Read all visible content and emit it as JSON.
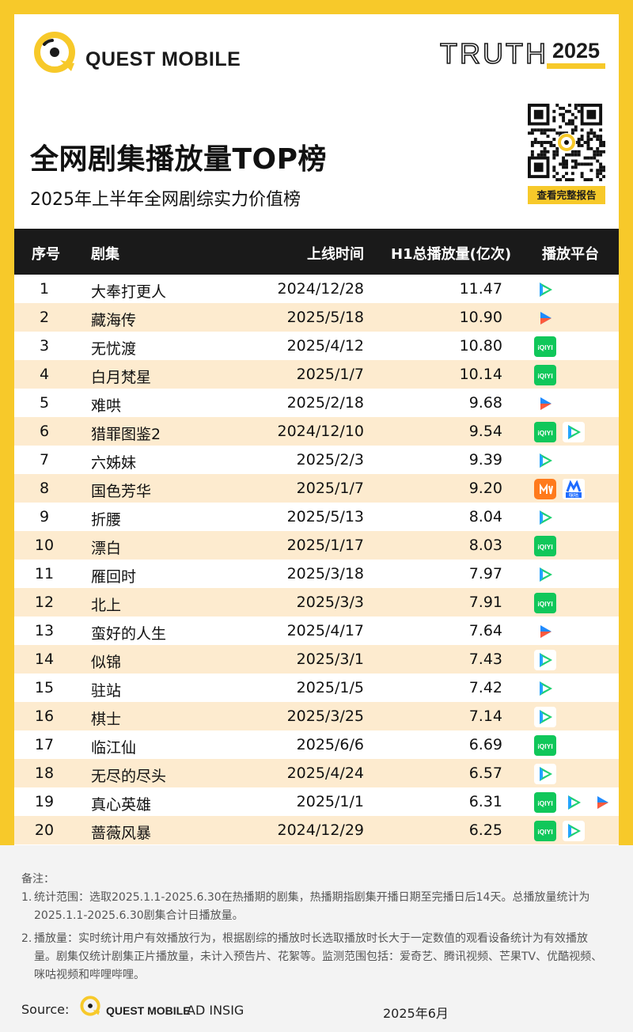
{
  "header": {
    "brand": "QUEST MOBILE",
    "truth_word": "TRUTH",
    "truth_year": "2025",
    "title": "全网剧集播放量TOP榜",
    "subtitle": "2025年上半年全网剧综实力价值榜",
    "report_button": "查看完整报告"
  },
  "table": {
    "columns": {
      "rank": "序号",
      "name": "剧集",
      "date": "上线时间",
      "plays": "H1总播放量(亿次)",
      "platform": "播放平台"
    },
    "rows": [
      {
        "rank": "1",
        "name": "大奉打更人",
        "date": "2024/12/28",
        "plays": "11.47",
        "platforms": [
          "tencent"
        ]
      },
      {
        "rank": "2",
        "name": "藏海传",
        "date": "2025/5/18",
        "plays": "10.90",
        "platforms": [
          "youku"
        ]
      },
      {
        "rank": "3",
        "name": "无忧渡",
        "date": "2025/4/12",
        "plays": "10.80",
        "platforms": [
          "iqiyi"
        ]
      },
      {
        "rank": "4",
        "name": "白月梵星",
        "date": "2025/1/7",
        "plays": "10.14",
        "platforms": [
          "iqiyi"
        ]
      },
      {
        "rank": "5",
        "name": "难哄",
        "date": "2025/2/18",
        "plays": "9.68",
        "platforms": [
          "youku"
        ]
      },
      {
        "rank": "6",
        "name": "猎罪图鉴2",
        "date": "2024/12/10",
        "plays": "9.54",
        "platforms": [
          "iqiyi",
          "tencent"
        ]
      },
      {
        "rank": "7",
        "name": "六姊妹",
        "date": "2025/2/3",
        "plays": "9.39",
        "platforms": [
          "tencent"
        ]
      },
      {
        "rank": "8",
        "name": "国色芳华",
        "date": "2025/1/7",
        "plays": "9.20",
        "platforms": [
          "mango",
          "migu"
        ]
      },
      {
        "rank": "9",
        "name": "折腰",
        "date": "2025/5/13",
        "plays": "8.04",
        "platforms": [
          "tencent"
        ]
      },
      {
        "rank": "10",
        "name": "漂白",
        "date": "2025/1/17",
        "plays": "8.03",
        "platforms": [
          "iqiyi"
        ]
      },
      {
        "rank": "11",
        "name": "雁回时",
        "date": "2025/3/18",
        "plays": "7.97",
        "platforms": [
          "tencent"
        ]
      },
      {
        "rank": "12",
        "name": "北上",
        "date": "2025/3/3",
        "plays": "7.91",
        "platforms": [
          "iqiyi"
        ]
      },
      {
        "rank": "13",
        "name": "蛮好的人生",
        "date": "2025/4/17",
        "plays": "7.64",
        "platforms": [
          "youku"
        ]
      },
      {
        "rank": "14",
        "name": "似锦",
        "date": "2025/3/1",
        "plays": "7.43",
        "platforms": [
          "tencent"
        ]
      },
      {
        "rank": "15",
        "name": "驻站",
        "date": "2025/1/5",
        "plays": "7.42",
        "platforms": [
          "tencent"
        ]
      },
      {
        "rank": "16",
        "name": "棋士",
        "date": "2025/3/25",
        "plays": "7.14",
        "platforms": [
          "tencent"
        ]
      },
      {
        "rank": "17",
        "name": "临江仙",
        "date": "2025/6/6",
        "plays": "6.69",
        "platforms": [
          "iqiyi"
        ]
      },
      {
        "rank": "18",
        "name": "无尽的尽头",
        "date": "2025/4/24",
        "plays": "6.57",
        "platforms": [
          "tencent"
        ]
      },
      {
        "rank": "19",
        "name": "真心英雄",
        "date": "2025/1/1",
        "plays": "6.31",
        "platforms": [
          "iqiyi",
          "tencent",
          "youku"
        ]
      },
      {
        "rank": "20",
        "name": "蔷薇风暴",
        "date": "2024/12/29",
        "plays": "6.25",
        "platforms": [
          "iqiyi",
          "tencent"
        ]
      }
    ]
  },
  "platform_icons": {
    "tencent": {
      "icon": "tencent-video-icon",
      "colors": [
        "#1fd171",
        "#22a3ff",
        "#ff8a1a"
      ]
    },
    "youku": {
      "icon": "youku-icon",
      "colors": [
        "#1f8bff",
        "#ff5a3c"
      ]
    },
    "iqiyi": {
      "icon": "iqiyi-icon",
      "colors": [
        "#10c75a"
      ],
      "label": "iQIYI"
    },
    "mango": {
      "icon": "mango-tv-icon",
      "colors": [
        "#ff7a1c"
      ]
    },
    "migu": {
      "icon": "migu-icon",
      "colors": [
        "#1f6cff",
        "#e8332f"
      ],
      "label": "咪咕"
    }
  },
  "notes": {
    "head": "备注：",
    "items": [
      {
        "num": "1.",
        "text": "统计范围：选取2025.1.1-2025.6.30在热播期的剧集，热播期指剧集开播日期至完播日后14天。总播放量统计为2025.1.1-2025.6.30剧集合计日播放量。"
      },
      {
        "num": "2.",
        "text": "播放量：实时统计用户有效播放行为，根据剧综的播放时长选取播放时长大于一定数值的观看设备统计为有效播放量。剧集仅统计剧集正片播放量，未计入预告片、花絮等。监测范围包括：爱奇艺、腾讯视频、芒果TV、优酷视频、咪咕视频和哔哩哔哩。"
      }
    ],
    "source_label": "Source:",
    "source_brand": "QUEST MOBILE",
    "source_ad": "AD INSIG",
    "source_date": "2025年6月"
  },
  "colors": {
    "frame": "#f7c92a",
    "header_bar": "#1a1a1a",
    "alt_row": "#fdebcf",
    "notes_bg": "#f3f3f3"
  }
}
